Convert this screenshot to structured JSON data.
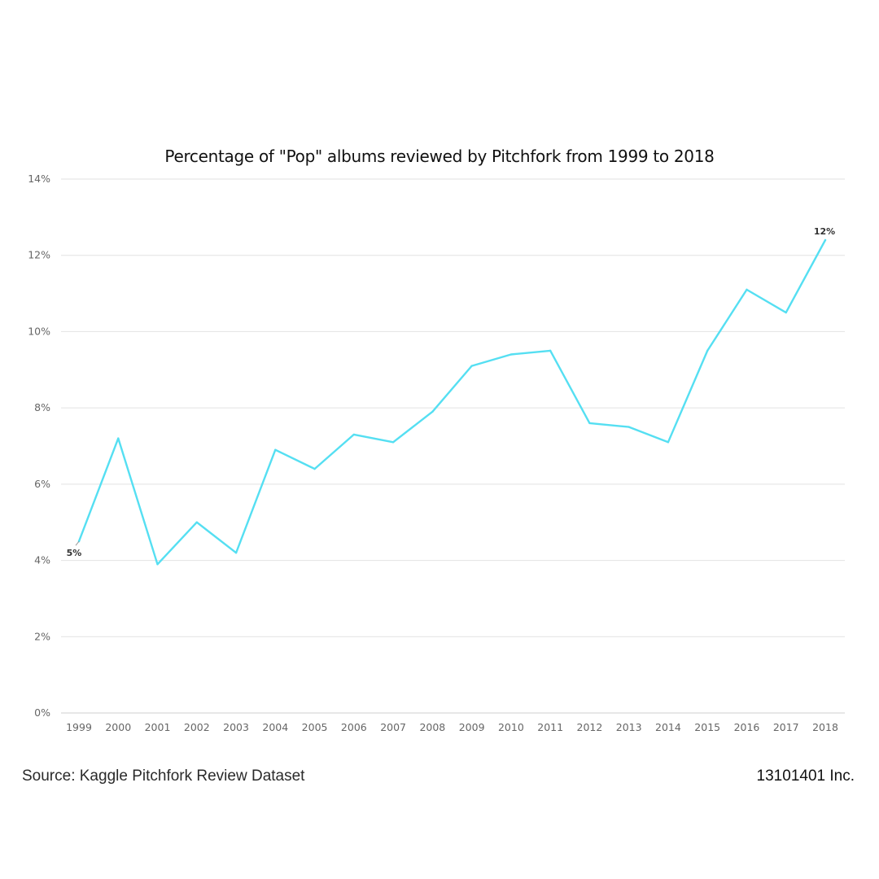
{
  "chart_data": {
    "type": "line",
    "title": "Percentage of \"Pop\" albums reviewed by Pitchfork from 1999 to 2018",
    "xlabel": "",
    "ylabel": "",
    "categories": [
      "1999",
      "2000",
      "2001",
      "2002",
      "2003",
      "2004",
      "2005",
      "2006",
      "2007",
      "2008",
      "2009",
      "2010",
      "2011",
      "2012",
      "2013",
      "2014",
      "2015",
      "2016",
      "2017",
      "2018"
    ],
    "series": [
      {
        "name": "Pop",
        "color": "#55dff2",
        "values": [
          4.5,
          7.2,
          3.9,
          5.0,
          4.2,
          6.9,
          6.4,
          7.3,
          7.1,
          7.9,
          9.1,
          9.4,
          9.5,
          7.6,
          7.5,
          7.1,
          9.5,
          11.1,
          10.5,
          12.4
        ]
      }
    ],
    "ylim": [
      0,
      14
    ],
    "yticks": [
      0,
      2,
      4,
      6,
      8,
      10,
      12,
      14
    ],
    "ytick_labels": [
      "0%",
      "2%",
      "4%",
      "6%",
      "8%",
      "10%",
      "12%",
      "14%"
    ],
    "grid": true,
    "annotations": [
      {
        "category": "1999",
        "text": "5%"
      },
      {
        "category": "2018",
        "text": "12%"
      }
    ]
  },
  "footer": {
    "source": "Source: Kaggle Pitchfork Review Dataset",
    "credit": "13101401 Inc."
  }
}
